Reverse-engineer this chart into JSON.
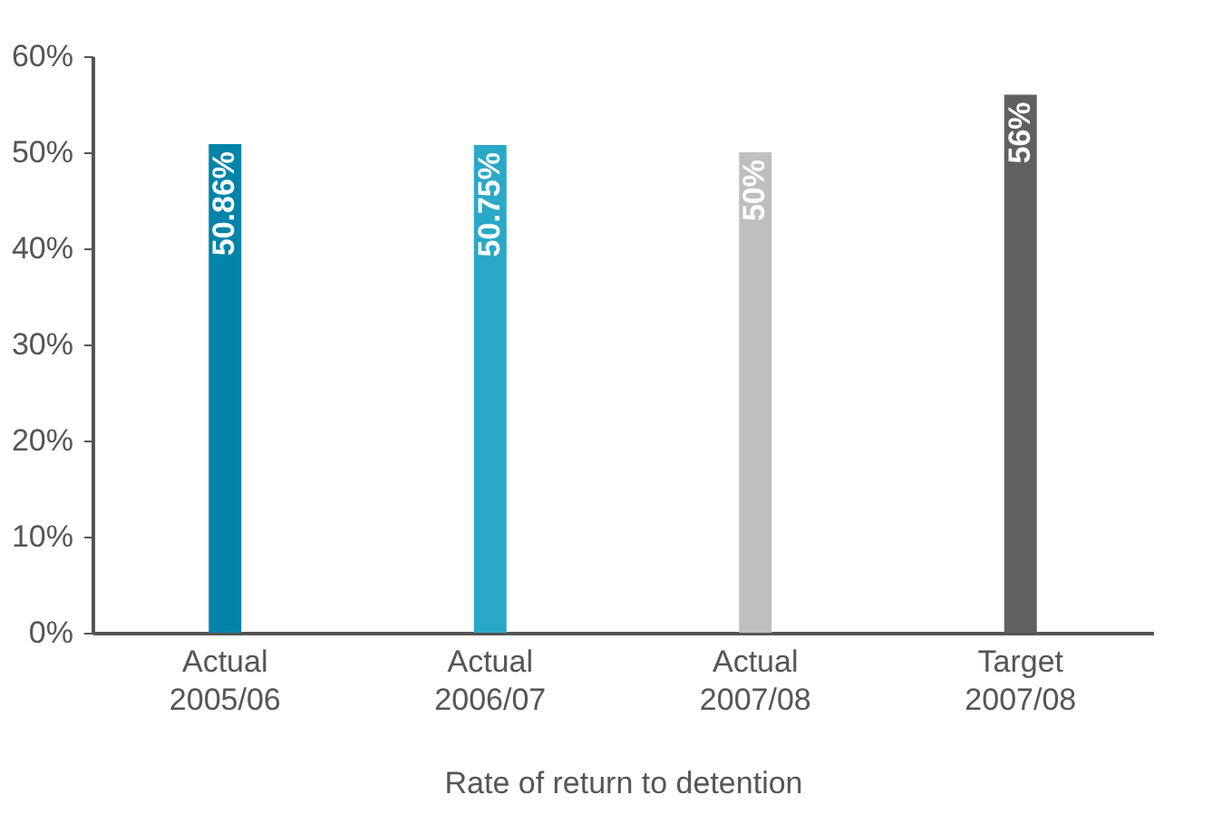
{
  "chart_data": {
    "type": "bar",
    "xlabel": "Rate of return to detention",
    "categories": [
      "Actual\n2005/06",
      "Actual\n2006/07",
      "Actual\n2007/08",
      "Target\n2007/08"
    ],
    "values": [
      50.86,
      50.75,
      50,
      56
    ],
    "colors": [
      "#0083a9",
      "#2aa8c8",
      "#bfbfbf",
      "#5f6062"
    ],
    "value_labels": [
      "50.86%",
      "50.75%",
      "50%",
      "56%"
    ],
    "ylim": [
      0,
      60
    ],
    "yticks": [
      {
        "value": 0,
        "label": "0%"
      },
      {
        "value": 10,
        "label": "10%"
      },
      {
        "value": 20,
        "label": "20%"
      },
      {
        "value": 30,
        "label": "30%"
      },
      {
        "value": 40,
        "label": "40%"
      },
      {
        "value": 50,
        "label": "50%"
      },
      {
        "value": 60,
        "label": "60%"
      }
    ],
    "grid": false
  }
}
